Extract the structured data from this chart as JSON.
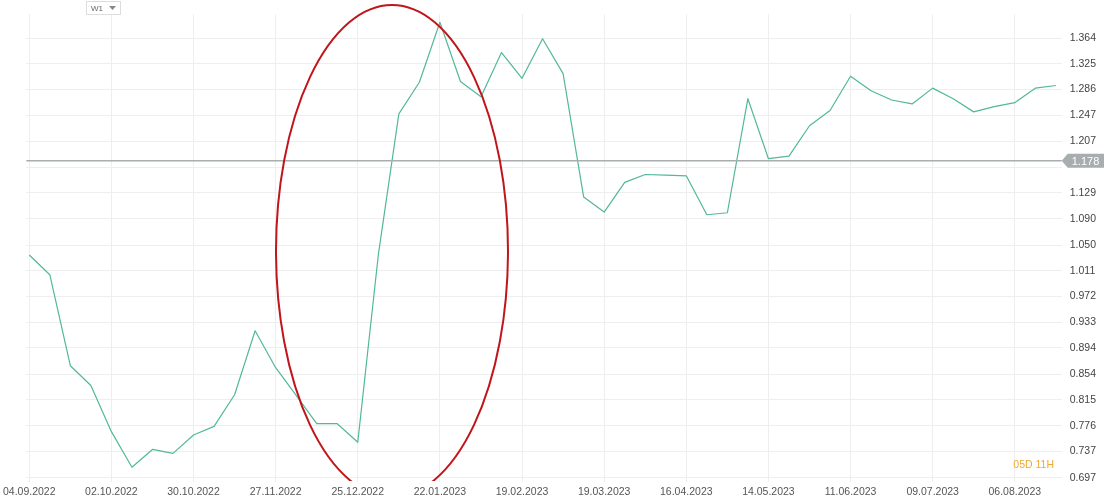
{
  "chart_data": {
    "type": "line",
    "annotations": [
      "W1",
      "05D 11H"
    ],
    "x": [
      "2022-09-04",
      "2022-09-11",
      "2022-09-18",
      "2022-09-25",
      "2022-10-02",
      "2022-10-09",
      "2022-10-16",
      "2022-10-23",
      "2022-10-30",
      "2022-11-06",
      "2022-11-13",
      "2022-11-20",
      "2022-11-27",
      "2022-12-04",
      "2022-12-11",
      "2022-12-18",
      "2022-12-25",
      "2023-01-01",
      "2023-01-08",
      "2023-01-15",
      "2023-01-22",
      "2023-01-29",
      "2023-02-05",
      "2023-02-12",
      "2023-02-19",
      "2023-02-26",
      "2023-03-05",
      "2023-03-12",
      "2023-03-19",
      "2023-03-26",
      "2023-04-02",
      "2023-04-09",
      "2023-04-16",
      "2023-04-23",
      "2023-04-30",
      "2023-05-07",
      "2023-05-14",
      "2023-05-21",
      "2023-05-28",
      "2023-06-04",
      "2023-06-11",
      "2023-06-18",
      "2023-06-25",
      "2023-07-02",
      "2023-07-09",
      "2023-07-16",
      "2023-07-23",
      "2023-07-30",
      "2023-08-06",
      "2023-08-13",
      "2023-08-20"
    ],
    "series": [
      {
        "color": "#52b89a",
        "values": [
          1.035,
          1.005,
          0.867,
          0.837,
          0.767,
          0.713,
          0.74,
          0.734,
          0.762,
          0.775,
          0.823,
          0.92,
          0.864,
          0.822,
          0.779,
          0.779,
          0.751,
          1.035,
          1.249,
          1.297,
          1.388,
          1.298,
          1.275,
          1.342,
          1.303,
          1.363,
          1.31,
          1.123,
          1.1,
          1.145,
          1.157,
          1.156,
          1.155,
          1.096,
          1.099,
          1.272,
          1.181,
          1.185,
          1.231,
          1.254,
          1.306,
          1.284,
          1.27,
          1.264,
          1.288,
          1.272,
          1.252,
          1.26,
          1.266,
          1.288,
          1.292
        ]
      }
    ],
    "xlim": [
      "2022-09-03",
      "2023-08-22"
    ],
    "xticks": [
      {
        "value": "2022-09-04",
        "label": "04.09.2022"
      },
      {
        "value": "2022-10-02",
        "label": "02.10.2022"
      },
      {
        "value": "2022-10-30",
        "label": "30.10.2022"
      },
      {
        "value": "2022-11-27",
        "label": "27.11.2022"
      },
      {
        "value": "2022-12-25",
        "label": "25.12.2022"
      },
      {
        "value": "2023-01-22",
        "label": "22.01.2023"
      },
      {
        "value": "2023-02-19",
        "label": "19.02.2023"
      },
      {
        "value": "2023-03-19",
        "label": "19.03.2023"
      },
      {
        "value": "2023-04-16",
        "label": "16.04.2023"
      },
      {
        "value": "2023-05-14",
        "label": "14.05.2023"
      },
      {
        "value": "2023-06-11",
        "label": "11.06.2023"
      },
      {
        "value": "2023-07-09",
        "label": "09.07.2023"
      },
      {
        "value": "2023-08-06",
        "label": "06.08.2023"
      }
    ],
    "ylim": [
      0.69,
      1.4
    ],
    "yticks": [
      {
        "value": 0.697,
        "label": "0.697"
      },
      {
        "value": 0.737,
        "label": "0.737"
      },
      {
        "value": 0.776,
        "label": "0.776"
      },
      {
        "value": 0.815,
        "label": "0.815"
      },
      {
        "value": 0.854,
        "label": "0.854"
      },
      {
        "value": 0.894,
        "label": "0.894"
      },
      {
        "value": 0.933,
        "label": "0.933"
      },
      {
        "value": 0.972,
        "label": "0.972"
      },
      {
        "value": 1.011,
        "label": "1.011"
      },
      {
        "value": 1.05,
        "label": "1.050"
      },
      {
        "value": 1.09,
        "label": "1.090"
      },
      {
        "value": 1.129,
        "label": "1.129"
      },
      {
        "value": 1.168,
        "label": null
      },
      {
        "value": 1.207,
        "label": "1.207"
      },
      {
        "value": 1.247,
        "label": "1.247"
      },
      {
        "value": 1.286,
        "label": "1.286"
      },
      {
        "value": 1.325,
        "label": "1.325"
      },
      {
        "value": 1.364,
        "label": "1.364"
      }
    ],
    "ref_lines": [
      {
        "axis": "y",
        "value": 1.178,
        "label": "1.178",
        "color": "#a8adb0"
      }
    ],
    "grid": true,
    "marker": "none",
    "line_style": "solid"
  }
}
